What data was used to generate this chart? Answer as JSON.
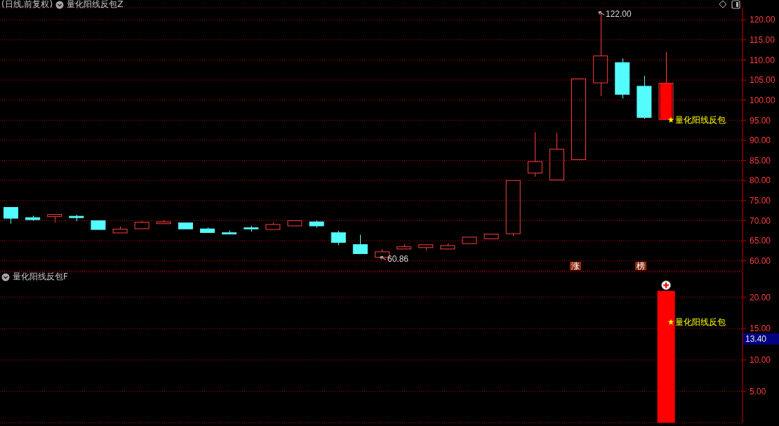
{
  "chart_data": [
    {
      "type": "candlestick",
      "title": "(日线,前复权)",
      "subtitle": "量化阳线反包Z",
      "categories": [
        null,
        null,
        null,
        null,
        null,
        null,
        null,
        null,
        null,
        null,
        null,
        null,
        null,
        null,
        null,
        null,
        null,
        null,
        null,
        null,
        null,
        null,
        null,
        null,
        null,
        null,
        null,
        null,
        null,
        null,
        null,
        null,
        null,
        null
      ],
      "ohlc": [
        [
          73.3,
          73.3,
          69.25,
          70.6
        ],
        [
          70.75,
          71.25,
          70.0,
          70.25
        ],
        [
          71.0,
          71.55,
          69.55,
          71.55
        ],
        [
          71.1,
          71.45,
          69.9,
          70.75
        ],
        [
          70.0,
          70.0,
          67.8,
          67.8
        ],
        [
          66.95,
          68.55,
          66.95,
          67.9
        ],
        [
          68.0,
          69.9,
          68.0,
          69.6
        ],
        [
          69.25,
          70.1,
          69.25,
          69.7
        ],
        [
          69.45,
          69.45,
          67.95,
          67.95
        ],
        [
          67.95,
          68.3,
          67.05,
          67.05
        ],
        [
          67.0,
          67.55,
          66.7,
          66.7
        ],
        [
          68.25,
          68.75,
          67.25,
          67.95
        ],
        [
          67.8,
          69.5,
          67.8,
          69.05
        ],
        [
          68.7,
          70.0,
          68.7,
          70.0
        ],
        [
          69.7,
          70.0,
          68.3,
          68.7
        ],
        [
          67.0,
          67.5,
          63.9,
          64.6
        ],
        [
          64.05,
          66.5,
          61.8,
          61.8
        ],
        [
          60.9,
          62.9,
          60.86,
          62.25
        ],
        [
          62.95,
          64.1,
          62.95,
          63.5
        ],
        [
          63.3,
          64.0,
          62.6,
          64.0
        ],
        [
          62.95,
          64.35,
          62.95,
          63.8
        ],
        [
          64.3,
          65.9,
          64.3,
          65.9
        ],
        [
          65.5,
          66.65,
          65.5,
          66.65
        ],
        [
          66.75,
          80.0,
          66.2,
          80.0
        ],
        [
          81.85,
          92.0,
          80.95,
          84.7
        ],
        [
          80.15,
          91.85,
          80.15,
          87.8
        ],
        [
          85.2,
          105.3,
          85.2,
          105.3
        ],
        [
          104.3,
          122.0,
          101.0,
          111.0
        ],
        [
          109.35,
          110.35,
          100.4,
          101.45
        ],
        [
          103.45,
          106.05,
          95.3,
          95.7
        ],
        [
          95.2,
          112.0,
          95.2,
          104.2
        ],
        null,
        null,
        null
      ],
      "colors": [
        "#54fcfc",
        "#54fcfc",
        "#ff3c3c",
        "#54fcfc",
        "#54fcfc",
        "#ff3c3c",
        "#ff3c3c",
        "#ff3c3c",
        "#54fcfc",
        "#54fcfc",
        "#54fcfc",
        "#54fcfc",
        "#ff3c3c",
        "#ff3c3c",
        "#54fcfc",
        "#54fcfc",
        "#54fcfc",
        "#ff3c3c",
        "#ff3c3c",
        "#ff3c3c",
        "#ff3c3c",
        "#ff3c3c",
        "#ff3c3c",
        "#ff3c3c",
        "#ff3c3c",
        "#ff3c3c",
        "#ff3c3c",
        "#ff3c3c",
        "#54fcfc",
        "#54fcfc",
        "#ff3c3c",
        null,
        null,
        null
      ],
      "series": [
        {
          "type": "bar",
          "color": "#ff0000",
          "values": [
            null,
            null,
            null,
            null,
            null,
            null,
            null,
            null,
            null,
            null,
            null,
            null,
            null,
            null,
            null,
            null,
            null,
            null,
            null,
            null,
            null,
            null,
            null,
            null,
            null,
            null,
            null,
            null,
            null,
            null,
            9.0,
            null,
            null,
            null
          ],
          "base": [
            null,
            null,
            null,
            null,
            null,
            null,
            null,
            null,
            null,
            null,
            null,
            null,
            null,
            null,
            null,
            null,
            null,
            null,
            null,
            null,
            null,
            null,
            null,
            null,
            null,
            null,
            null,
            null,
            null,
            null,
            95.2,
            null,
            null,
            null
          ]
        }
      ],
      "ylim": [
        57.5,
        123
      ],
      "yticks": [
        {
          "value": 60,
          "label": "60.00"
        },
        {
          "value": 65,
          "label": "65.00"
        },
        {
          "value": 70,
          "label": "70.00"
        },
        {
          "value": 75,
          "label": "75.00"
        },
        {
          "value": 80,
          "label": "80.00"
        },
        {
          "value": 85,
          "label": "85.00"
        },
        {
          "value": 90,
          "label": "90.00"
        },
        {
          "value": 95,
          "label": "95.00"
        },
        {
          "value": 100,
          "label": "100.00"
        },
        {
          "value": 105,
          "label": "105.00"
        },
        {
          "value": 110,
          "label": "110.00"
        },
        {
          "value": 115,
          "label": "115.00"
        },
        {
          "value": 120,
          "label": "120.00"
        }
      ],
      "grid": "y",
      "tick_labels": "y",
      "annotations": [
        "122.00",
        "60.86",
        "量化阳线反包",
        "涨",
        "榜"
      ]
    },
    {
      "type": "bar",
      "title": "量化阳线反包F",
      "categories": [
        null,
        null,
        null,
        null,
        null,
        null,
        null,
        null,
        null,
        null,
        null,
        null,
        null,
        null,
        null,
        null,
        null,
        null,
        null,
        null,
        null,
        null,
        null,
        null,
        null,
        null,
        null,
        null,
        null,
        null,
        null,
        null,
        null,
        null
      ],
      "values": [
        null,
        null,
        null,
        null,
        null,
        null,
        null,
        null,
        null,
        null,
        null,
        null,
        null,
        null,
        null,
        null,
        null,
        null,
        null,
        null,
        null,
        null,
        null,
        null,
        null,
        null,
        null,
        null,
        null,
        null,
        21,
        null,
        null,
        null
      ],
      "color": "#ff0000",
      "ylim": [
        0,
        24
      ],
      "yticks": [
        {
          "value": 5,
          "label": "5.00"
        },
        {
          "value": 10,
          "label": "10.00"
        },
        {
          "value": 15,
          "label": "15.00"
        },
        {
          "value": 20,
          "label": "20.00"
        }
      ],
      "grid": "y",
      "tick_labels": "y",
      "annotations": [
        "量化阳线反包",
        "13.40"
      ]
    }
  ]
}
